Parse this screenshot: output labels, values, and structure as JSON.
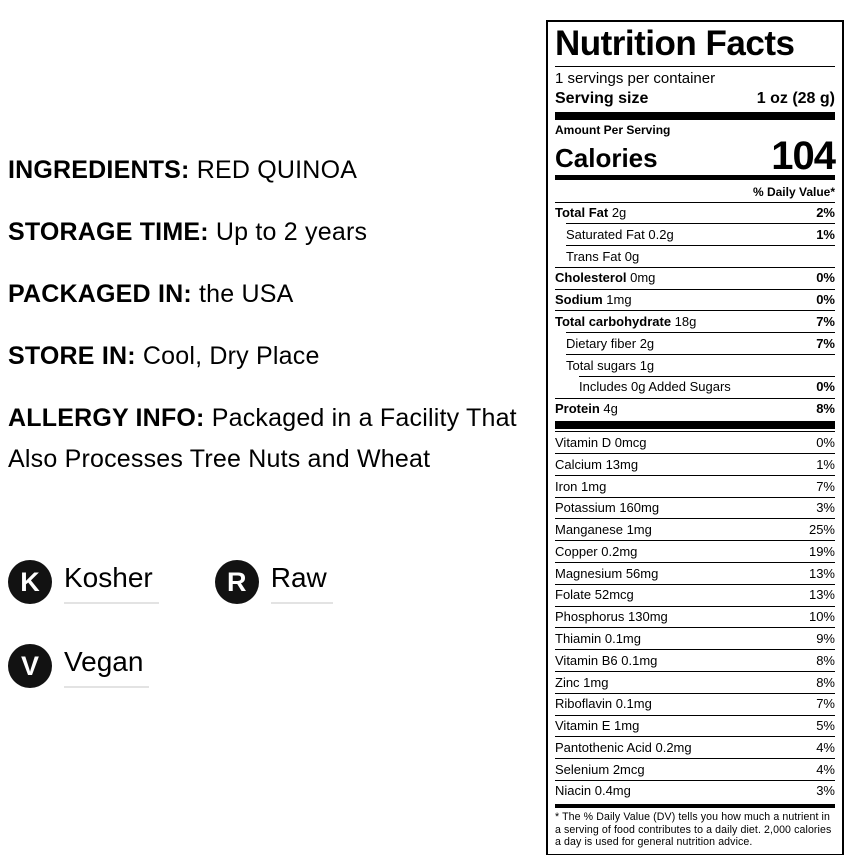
{
  "left_panel": {
    "sections": [
      {
        "label": "INGREDIENTS:",
        "value": "RED QUINOA"
      },
      {
        "label": "STORAGE TIME:",
        "value": "Up to 2 years"
      },
      {
        "label": "PACKAGED IN:",
        "value": "the USA"
      },
      {
        "label": "STORE IN:",
        "value": "Cool, Dry Place"
      },
      {
        "label": "ALLERGY INFO:",
        "value": "Packaged in a Facility That Also Processes Tree Nuts and Wheat"
      }
    ],
    "badges": [
      {
        "letter": "K",
        "label": "Kosher"
      },
      {
        "letter": "R",
        "label": "Raw"
      },
      {
        "letter": "V",
        "label": "Vegan"
      }
    ]
  },
  "nutrition_facts": {
    "title": "Nutrition Facts",
    "servings_line": "1 servings per container",
    "serving_size_label": "Serving size",
    "serving_size_value": "1 oz (28 g)",
    "amount_per_serving": "Amount Per Serving",
    "calories_label": "Calories",
    "calories_value": "104",
    "daily_value_header": "% Daily Value*",
    "main_rows": [
      {
        "name": "Total Fat",
        "amount": "2g",
        "dv": "2%",
        "bold": true,
        "indent": 0
      },
      {
        "name": "Saturated Fat",
        "amount": "0.2g",
        "dv": "1%",
        "bold": false,
        "indent": 1
      },
      {
        "name": "Trans Fat",
        "amount": "0g",
        "dv": "",
        "bold": false,
        "indent": 1
      },
      {
        "name": "Cholesterol",
        "amount": "0mg",
        "dv": "0%",
        "bold": true,
        "indent": 0
      },
      {
        "name": "Sodium",
        "amount": "1mg",
        "dv": "0%",
        "bold": true,
        "indent": 0
      },
      {
        "name": "Total carbohydrate",
        "amount": "18g",
        "dv": "7%",
        "bold": true,
        "indent": 0
      },
      {
        "name": "Dietary fiber",
        "amount": "2g",
        "dv": "7%",
        "bold": false,
        "indent": 1
      },
      {
        "name": "Total sugars",
        "amount": "1g",
        "dv": "",
        "bold": false,
        "indent": 1
      },
      {
        "name": "Includes 0g Added Sugars",
        "amount": "",
        "dv": "0%",
        "bold": false,
        "indent": 2
      },
      {
        "name": "Protein",
        "amount": "4g",
        "dv": "8%",
        "bold": true,
        "indent": 0
      }
    ],
    "vitamin_rows": [
      {
        "name": "Vitamin D",
        "amount": "0mcg",
        "dv": "0%"
      },
      {
        "name": "Calcium",
        "amount": "13mg",
        "dv": "1%"
      },
      {
        "name": "Iron",
        "amount": "1mg",
        "dv": "7%"
      },
      {
        "name": "Potassium",
        "amount": "160mg",
        "dv": "3%"
      },
      {
        "name": "Manganese",
        "amount": "1mg",
        "dv": "25%"
      },
      {
        "name": "Copper",
        "amount": "0.2mg",
        "dv": "19%"
      },
      {
        "name": "Magnesium",
        "amount": "56mg",
        "dv": "13%"
      },
      {
        "name": "Folate",
        "amount": "52mcg",
        "dv": "13%"
      },
      {
        "name": "Phosphorus",
        "amount": "130mg",
        "dv": "10%"
      },
      {
        "name": "Thiamin",
        "amount": "0.1mg",
        "dv": "9%"
      },
      {
        "name": "Vitamin B6",
        "amount": "0.1mg",
        "dv": "8%"
      },
      {
        "name": "Zinc",
        "amount": "1mg",
        "dv": "8%"
      },
      {
        "name": "Riboflavin",
        "amount": "0.1mg",
        "dv": "7%"
      },
      {
        "name": "Vitamin E",
        "amount": "1mg",
        "dv": "5%"
      },
      {
        "name": "Pantothenic Acid",
        "amount": "0.2mg",
        "dv": "4%"
      },
      {
        "name": "Selenium",
        "amount": "2mcg",
        "dv": "4%"
      },
      {
        "name": "Niacin",
        "amount": "0.4mg",
        "dv": "3%"
      }
    ],
    "footnote": "* The % Daily Value (DV) tells you how much a nutrient in a serving of food contributes to a daily diet. 2,000 calories a day is used for general nutrition advice."
  },
  "colors": {
    "text": "#000000",
    "background": "#ffffff",
    "badge_background": "#121212",
    "badge_letter": "#ffffff",
    "badge_underline": "#e3e3e3",
    "panel_border": "#000000"
  }
}
